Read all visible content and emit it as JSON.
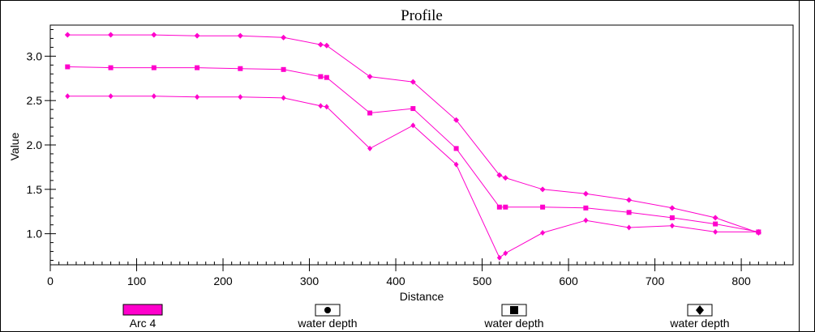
{
  "chart_data": {
    "type": "line",
    "title": "Profile",
    "xlabel": "Distance",
    "ylabel": "Value",
    "xlim": [
      0,
      860
    ],
    "ylim": [
      0.65,
      3.35
    ],
    "x_ticks": [
      0,
      100,
      200,
      300,
      400,
      500,
      600,
      700,
      800
    ],
    "x_tick_labels": [
      "0",
      "100",
      "200",
      "300",
      "400",
      "500",
      "600",
      "700",
      "800"
    ],
    "y_ticks": [
      1.0,
      1.5,
      2.0,
      2.5,
      3.0
    ],
    "y_tick_labels": [
      "1.0",
      "1.5",
      "2.0",
      "2.5",
      "3.0"
    ],
    "grid": false,
    "legend_placement": "bottom",
    "line_color": "#ff00cc",
    "x": [
      20,
      70,
      120,
      170,
      220,
      270,
      313,
      320,
      370,
      420,
      470,
      520,
      527,
      570,
      620,
      670,
      720,
      770,
      820
    ],
    "series": [
      {
        "name": "water depth",
        "marker": "circle",
        "values": [
          2.55,
          2.55,
          2.55,
          2.54,
          2.54,
          2.53,
          2.44,
          2.43,
          1.96,
          2.22,
          1.78,
          0.73,
          0.78,
          1.01,
          1.15,
          1.07,
          1.09,
          1.02,
          1.02
        ]
      },
      {
        "name": "water depth",
        "marker": "square",
        "values": [
          2.88,
          2.87,
          2.87,
          2.87,
          2.86,
          2.85,
          2.77,
          2.76,
          2.36,
          2.41,
          1.96,
          1.3,
          1.3,
          1.3,
          1.29,
          1.24,
          1.18,
          1.11,
          1.02
        ]
      },
      {
        "name": "water depth",
        "marker": "diamond",
        "values": [
          3.24,
          3.24,
          3.24,
          3.23,
          3.23,
          3.21,
          3.13,
          3.12,
          2.77,
          2.71,
          2.28,
          1.66,
          1.63,
          1.5,
          1.45,
          1.38,
          1.29,
          1.18,
          1.01
        ]
      }
    ]
  },
  "legend": {
    "swatch_label": "Arc 4",
    "items": [
      {
        "label": "water depth",
        "marker": "circle"
      },
      {
        "label": "water depth",
        "marker": "square"
      },
      {
        "label": "water depth",
        "marker": "diamond"
      }
    ]
  }
}
